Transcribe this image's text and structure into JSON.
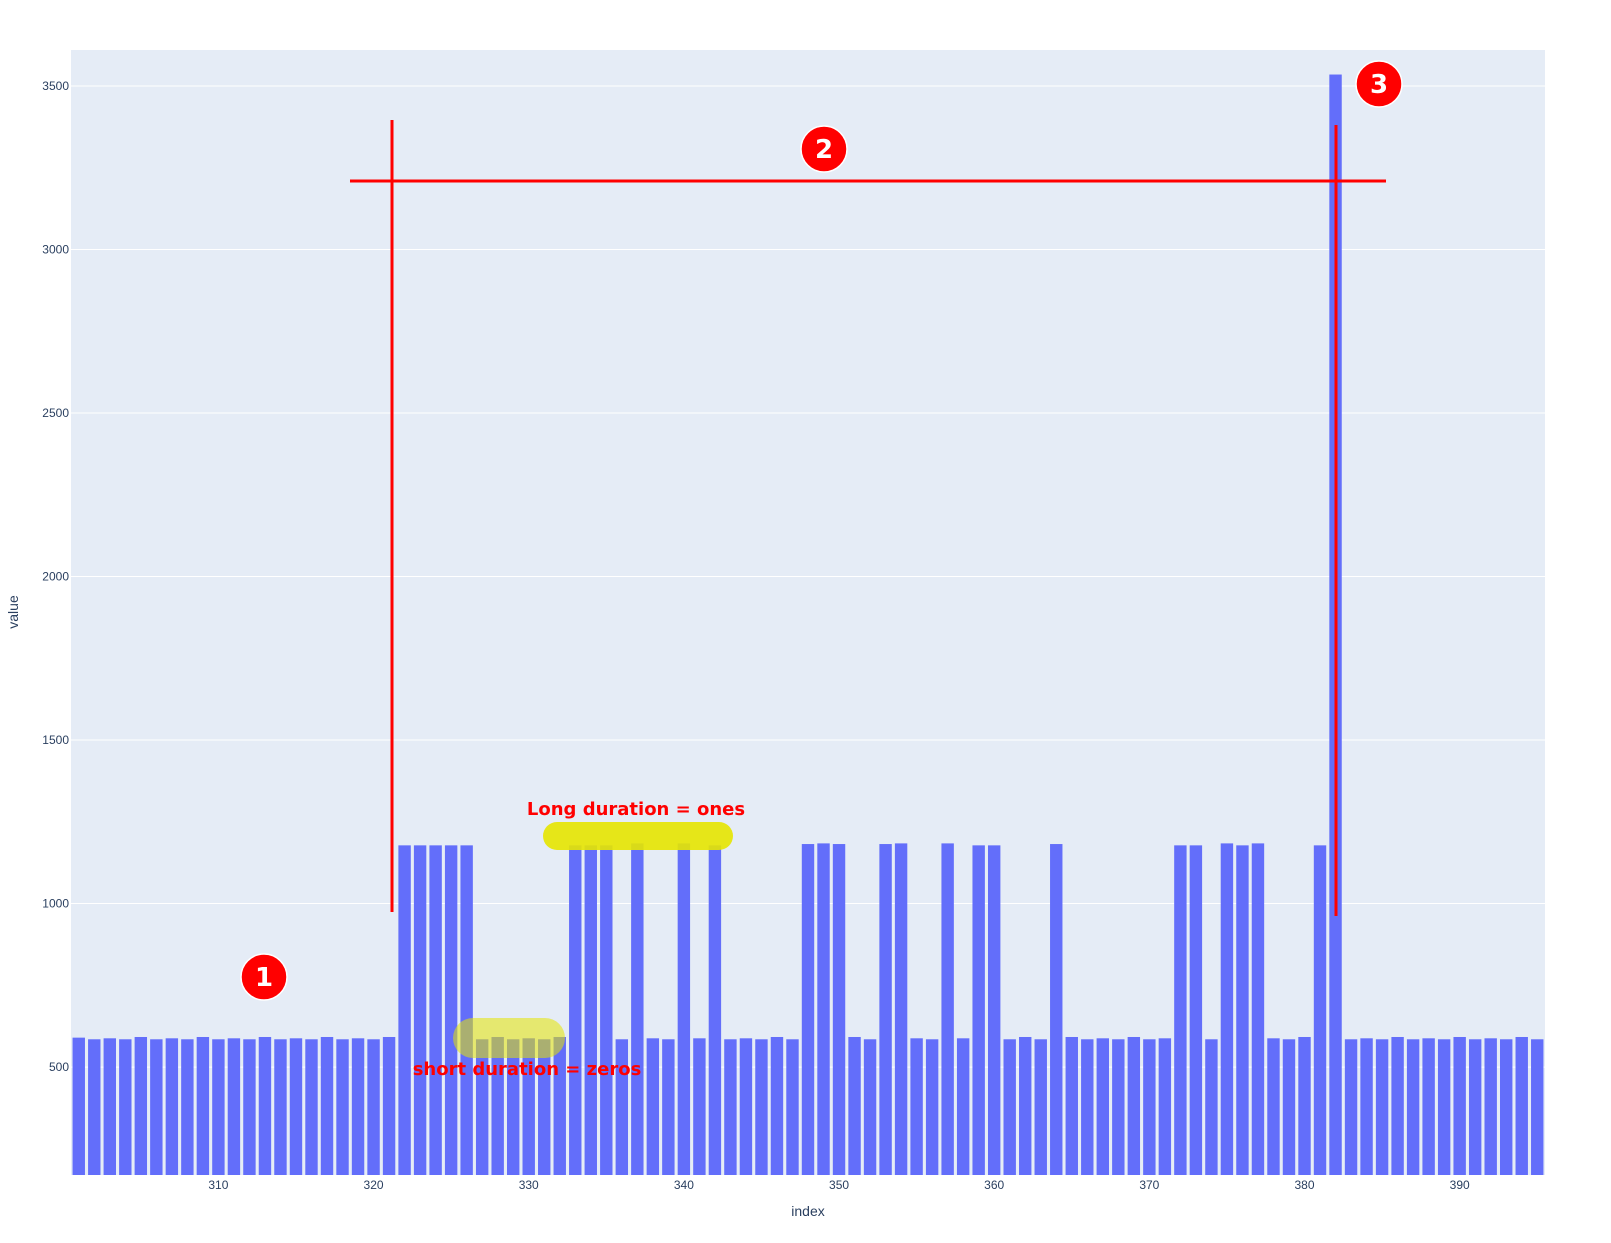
{
  "chart_data": {
    "type": "bar",
    "xlabel": "index",
    "ylabel": "value",
    "x_start": 301,
    "xlim": [
      300.5,
      395.5
    ],
    "ylim": [
      170,
      3610
    ],
    "x_ticks": [
      310,
      320,
      330,
      340,
      350,
      360,
      370,
      380,
      390
    ],
    "y_ticks": [
      500,
      1000,
      1500,
      2000,
      2500,
      3000,
      3500
    ],
    "bar_color": "#636efa",
    "plot_background": "#e5ecf6",
    "grid": true,
    "values": [
      590,
      585,
      588,
      585,
      592,
      585,
      588,
      585,
      592,
      585,
      588,
      585,
      592,
      585,
      588,
      585,
      592,
      585,
      588,
      585,
      592,
      1178,
      1178,
      1178,
      1178,
      1178,
      585,
      592,
      585,
      588,
      585,
      592,
      1178,
      1178,
      1178,
      585,
      1184,
      588,
      585,
      1184,
      588,
      1178,
      585,
      588,
      585,
      592,
      585,
      1182,
      1184,
      1182,
      592,
      585,
      1182,
      1184,
      588,
      585,
      1184,
      588,
      1178,
      1178,
      585,
      592,
      585,
      1182,
      592,
      585,
      588,
      585,
      592,
      585,
      588,
      1178,
      1178,
      585,
      1184,
      1178,
      1184,
      588,
      585,
      592,
      1178,
      3535,
      585,
      588,
      585,
      592,
      585,
      588,
      585,
      592,
      585,
      588,
      585,
      592,
      585,
      588
    ]
  },
  "annotations": {
    "long_label": "Long duration = ones",
    "short_label": "short duration = zeros",
    "badges": [
      "1",
      "2",
      "3"
    ],
    "line_color": "#ff0000",
    "highlight_color": "#e6e600"
  }
}
